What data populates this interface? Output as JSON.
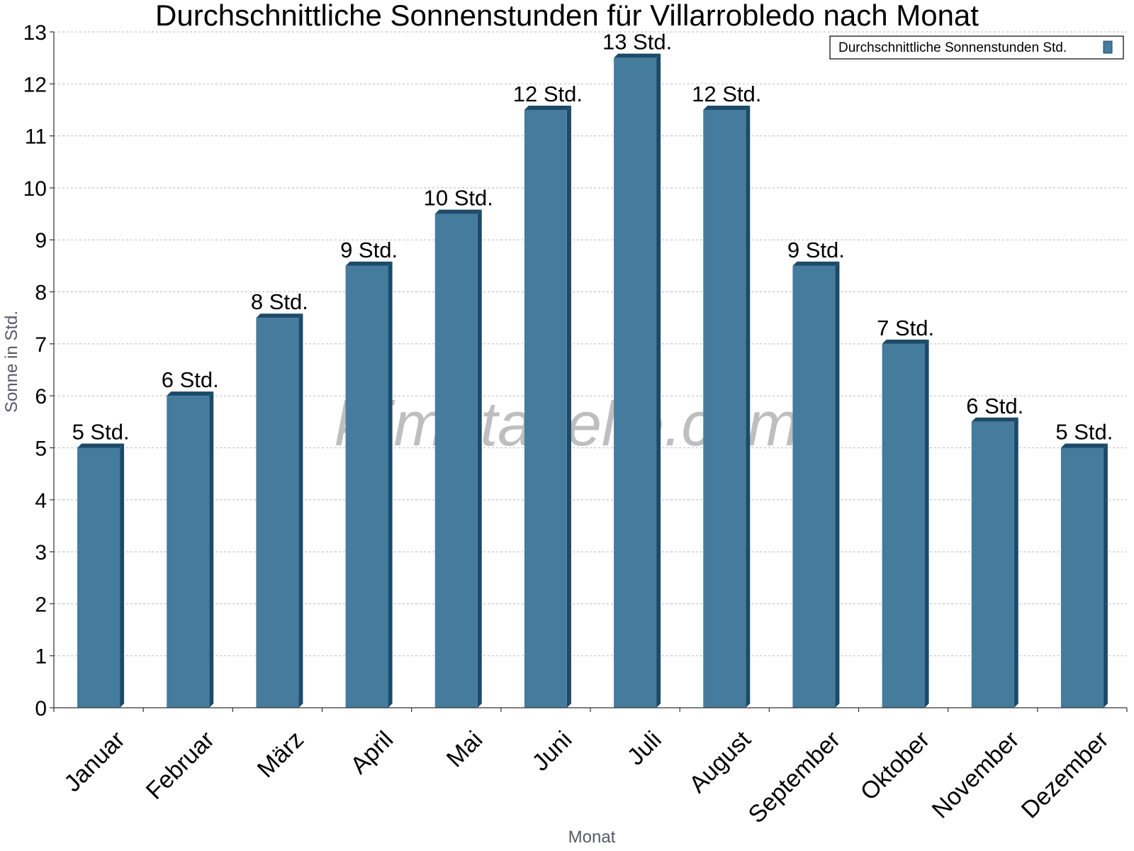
{
  "chart_data": {
    "type": "bar",
    "title": "Durchschnittliche Sonnenstunden für Villarrobledo nach Monat",
    "xlabel": "Monat",
    "ylabel": "Sonne in Std.",
    "ylim": [
      0,
      13
    ],
    "yticks": [
      0,
      1,
      2,
      3,
      4,
      5,
      6,
      7,
      8,
      9,
      10,
      11,
      12,
      13
    ],
    "grid": true,
    "legend_position": "top-right",
    "categories": [
      "Januar",
      "Februar",
      "März",
      "April",
      "Mai",
      "Juni",
      "Juli",
      "August",
      "September",
      "Oktober",
      "November",
      "Dezember"
    ],
    "series": [
      {
        "name": "Durchschnittliche Sonnenstunden Std.",
        "values": [
          5,
          6,
          7.5,
          8.5,
          9.5,
          11.5,
          12.5,
          11.5,
          8.5,
          7,
          5.5,
          5
        ],
        "data_labels": [
          "5 Std.",
          "6 Std.",
          "8 Std.",
          "9 Std.",
          "10 Std.",
          "12 Std.",
          "13 Std.",
          "12 Std.",
          "9 Std.",
          "7 Std.",
          "6 Std.",
          "5 Std."
        ],
        "color": "#457b9d",
        "shade_color": "#1c4a68"
      }
    ]
  },
  "watermark": "klimatabelle.com"
}
